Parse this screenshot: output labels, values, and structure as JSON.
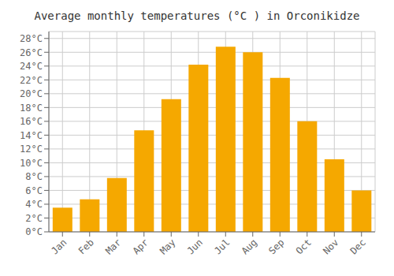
{
  "chart_data": {
    "type": "bar",
    "title": "Average monthly temperatures (°C ) in Orconikidze",
    "categories": [
      "Jan",
      "Feb",
      "Mar",
      "Apr",
      "May",
      "Jun",
      "Jul",
      "Aug",
      "Sep",
      "Oct",
      "Nov",
      "Dec"
    ],
    "values": [
      3.5,
      4.7,
      7.8,
      14.7,
      19.2,
      24.2,
      26.8,
      26.0,
      22.3,
      16.0,
      10.5,
      6.0
    ],
    "color": "#F5A800",
    "ylim": [
      0,
      29
    ],
    "yticks": [
      {
        "value": 0,
        "label": "0°C"
      },
      {
        "value": 2,
        "label": "2°C"
      },
      {
        "value": 4,
        "label": "4°C"
      },
      {
        "value": 6,
        "label": "6°C"
      },
      {
        "value": 8,
        "label": "8°C"
      },
      {
        "value": 10,
        "label": "10°C"
      },
      {
        "value": 12,
        "label": "12°C"
      },
      {
        "value": 14,
        "label": "14°C"
      },
      {
        "value": 16,
        "label": "16°C"
      },
      {
        "value": 18,
        "label": "18°C"
      },
      {
        "value": 20,
        "label": "20°C"
      },
      {
        "value": 22,
        "label": "22°C"
      },
      {
        "value": 24,
        "label": "24°C"
      },
      {
        "value": 26,
        "label": "26°C"
      },
      {
        "value": 28,
        "label": "28°C"
      }
    ],
    "grid": true
  }
}
